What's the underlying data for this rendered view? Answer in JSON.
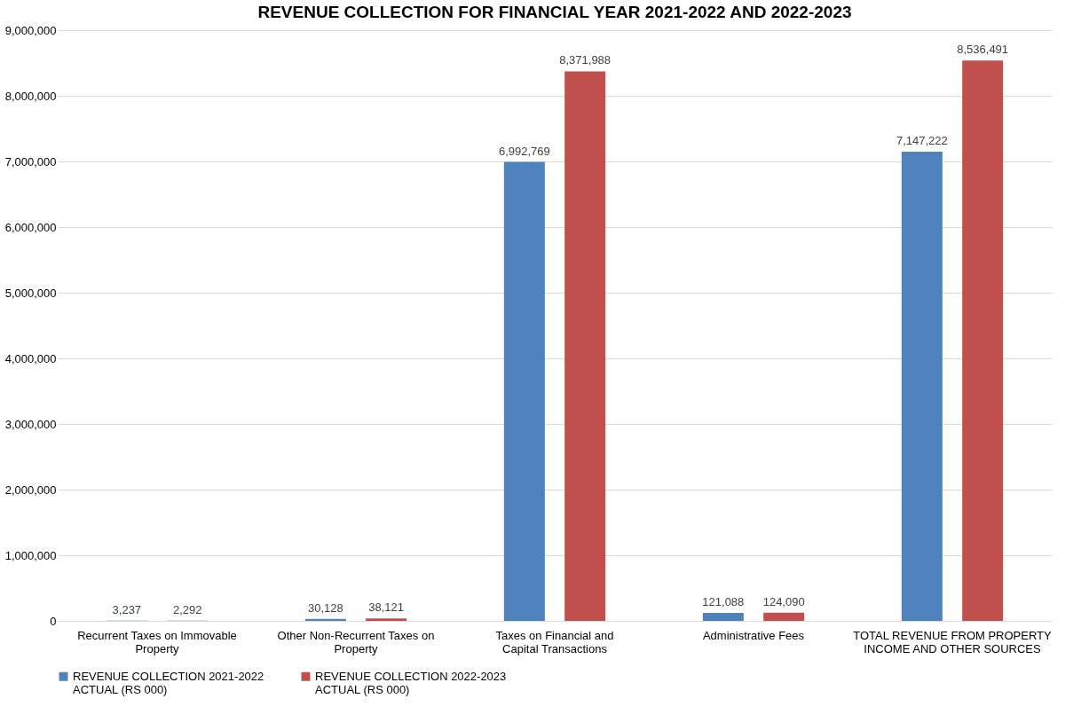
{
  "chart_data": {
    "type": "bar",
    "title": "REVENUE COLLECTION FOR FINANCIAL YEAR 2021-2022 AND 2022-2023",
    "categories": [
      "Recurrent Taxes on Immovable Property",
      "Other Non-Recurrent Taxes on Property",
      "Taxes on Financial and Capital Transactions",
      "Administrative Fees",
      "TOTAL REVENUE FROM PROPERTY INCOME AND OTHER SOURCES"
    ],
    "series": [
      {
        "name": "REVENUE COLLECTION 2021-2022 ACTUAL (RS 000)",
        "color": "#4f81bd",
        "values": [
          3237,
          30128,
          6992769,
          121088,
          7147222
        ],
        "value_labels": [
          "3,237",
          "30,128",
          "6,992,769",
          "121,088",
          "7,147,222"
        ]
      },
      {
        "name": "REVENUE COLLECTION 2022-2023 ACTUAL (RS 000)",
        "color": "#c0504d",
        "values": [
          2292,
          38121,
          8371988,
          124090,
          8536491
        ],
        "value_labels": [
          "2,292",
          "38,121",
          "8,371,988",
          "124,090",
          "8,536,491"
        ]
      }
    ],
    "ylim": [
      0,
      9000000
    ],
    "yticks": [
      0,
      {
        "value": 1000000,
        "label": "1,000,000"
      },
      {
        "value": 2000000,
        "label": "2,000,000"
      },
      {
        "value": 3000000,
        "label": "3,000,000"
      },
      {
        "value": 4000000,
        "label": "4,000,000"
      },
      {
        "value": 5000000,
        "label": "5,000,000"
      },
      {
        "value": 6000000,
        "label": "6,000,000"
      },
      {
        "value": 7000000,
        "label": "7,000,000"
      },
      {
        "value": 8000000,
        "label": "8,000,000"
      },
      {
        "value": 9000000,
        "label": "9,000,000"
      }
    ],
    "grid": "y",
    "legend": "bottom"
  }
}
